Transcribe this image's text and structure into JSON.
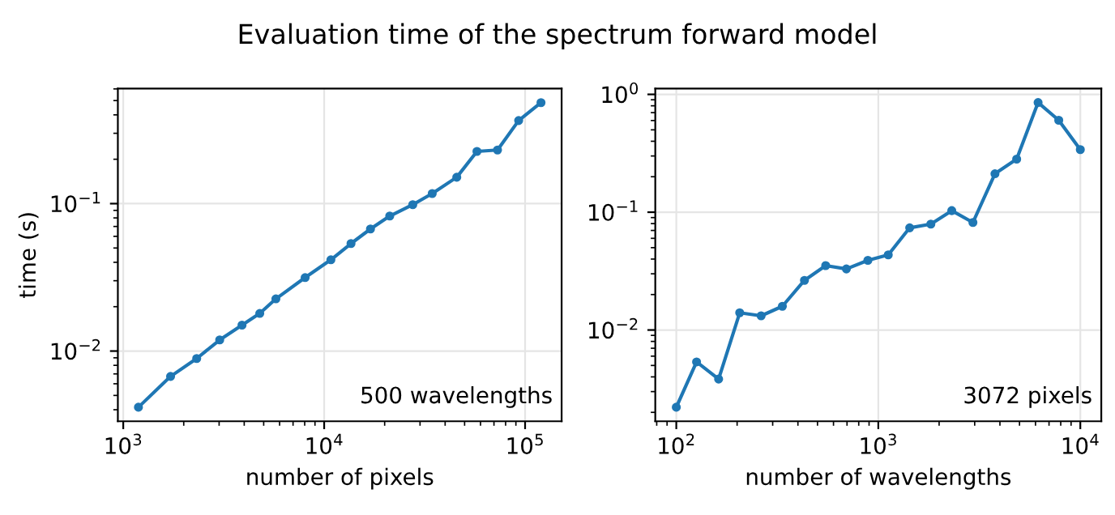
{
  "chart_data": [
    {
      "type": "line",
      "title": "Evaluation time of the spectrum forward model",
      "xlabel": "number of pixels",
      "ylabel": "time (s)",
      "log": "xy",
      "grid": true,
      "marker": "circle",
      "line_style": "solid",
      "x": [
        1190,
        1720,
        2320,
        3020,
        3900,
        4780,
        5750,
        8040,
        10800,
        13600,
        17000,
        21200,
        27600,
        34500,
        45700,
        57600,
        72900,
        92900,
        120000
      ],
      "series": [
        {
          "color": "#1f77b4",
          "values": [
            0.00416,
            0.00673,
            0.0089,
            0.0119,
            0.015,
            0.018,
            0.0226,
            0.0315,
            0.0416,
            0.0536,
            0.0673,
            0.0824,
            0.0984,
            0.117,
            0.151,
            0.226,
            0.231,
            0.366,
            0.484
          ]
        }
      ],
      "xlim": [
        940,
        152000
      ],
      "ylim": [
        0.00334,
        0.603
      ],
      "xticks": [
        {
          "value": 1000,
          "label": "10$^{3}$"
        },
        {
          "value": 10000,
          "label": "10$^{4}$"
        },
        {
          "value": 100000,
          "label": "10$^{5}$"
        }
      ],
      "yticks": [
        {
          "value": 0.01,
          "label": "10$^{−2}$"
        },
        {
          "value": 0.1,
          "label": "10$^{−1}$"
        }
      ],
      "annotations": [
        "500 wavelengths"
      ]
    },
    {
      "type": "line",
      "xlabel": "number of wavelengths",
      "log": "xy",
      "grid": true,
      "marker": "circle",
      "line_style": "solid",
      "x": [
        100,
        126,
        162,
        206,
        263,
        335,
        431,
        549,
        695,
        888,
        1120,
        1430,
        1820,
        2310,
        2940,
        3780,
        4840,
        6180,
        7820,
        10000
      ],
      "series": [
        {
          "color": "#1f77b4",
          "values": [
            0.00221,
            0.00536,
            0.00383,
            0.014,
            0.0132,
            0.0159,
            0.0264,
            0.0352,
            0.033,
            0.039,
            0.0434,
            0.0737,
            0.0793,
            0.103,
            0.0818,
            0.212,
            0.282,
            0.853,
            0.603,
            0.34
          ]
        }
      ],
      "xlim": [
        78.7,
        12700
      ],
      "ylim": [
        0.00168,
        1.12
      ],
      "xticks": [
        {
          "value": 100,
          "label": "10$^{2}$"
        },
        {
          "value": 1000,
          "label": "10$^{3}$"
        },
        {
          "value": 10000,
          "label": "10$^{4}$"
        }
      ],
      "yticks": [
        {
          "value": 0.01,
          "label": "10$^{−2}$"
        },
        {
          "value": 0.1,
          "label": "10$^{−1}$"
        },
        {
          "value": 1,
          "label": "10$^{0}$"
        }
      ],
      "annotations": [
        "3072 pixels"
      ]
    }
  ]
}
